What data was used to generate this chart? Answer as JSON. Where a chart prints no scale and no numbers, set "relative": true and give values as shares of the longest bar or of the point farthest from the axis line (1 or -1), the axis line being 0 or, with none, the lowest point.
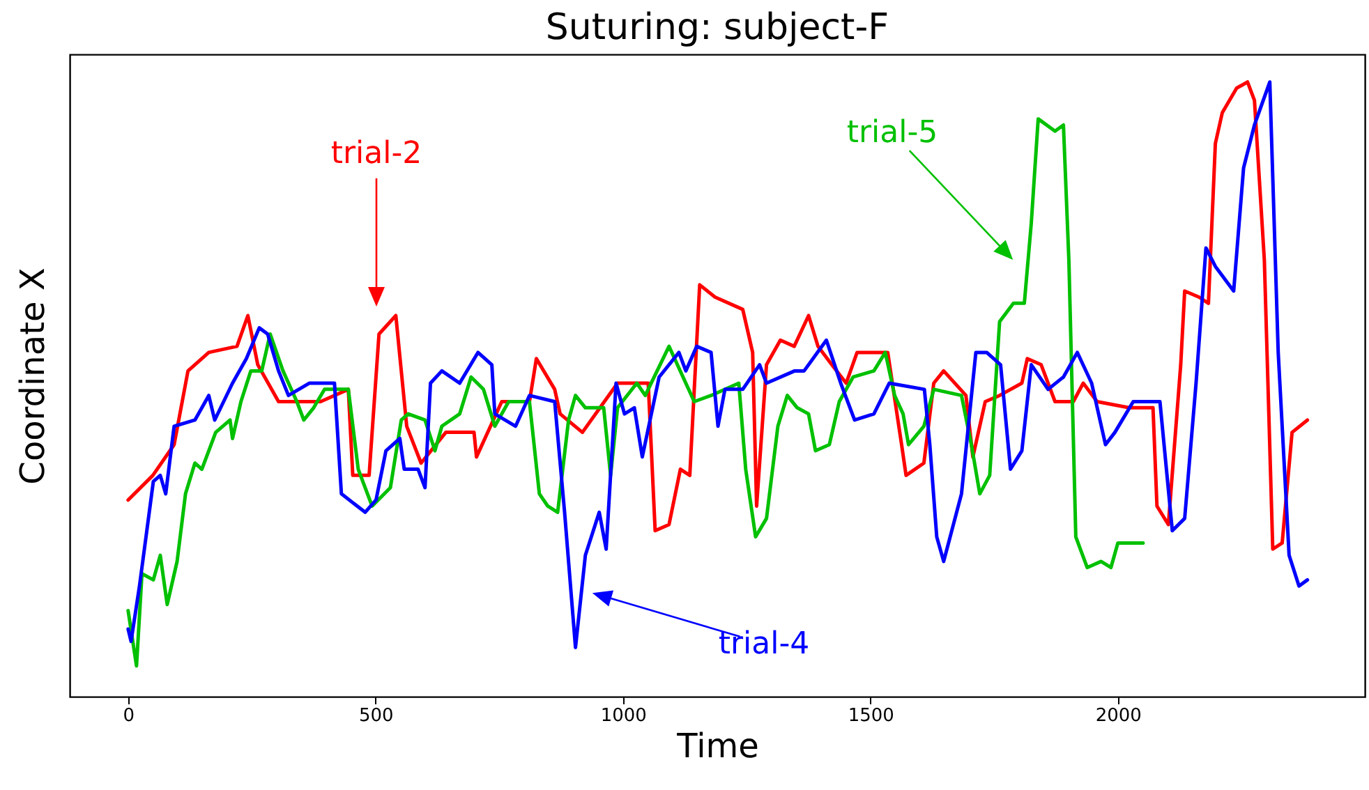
{
  "chart_data": {
    "type": "line",
    "title": "Suturing: subject-F",
    "xlabel": "Time",
    "ylabel": "Coordinate X",
    "relative": true,
    "xlim": [
      -118,
      2499
    ],
    "xticks": [
      0,
      500,
      1000,
      1500,
      2000
    ],
    "grid": false,
    "legend": false,
    "marker": "none",
    "line_style": "solid",
    "annotations": [
      "trial-2",
      "trial-5",
      "trial-4"
    ],
    "series": [
      {
        "color": "#ff0000",
        "x": [
          0,
          50,
          93,
          121,
          163,
          220,
          242,
          262,
          304,
          389,
          445,
          454,
          487,
          507,
          541,
          563,
          592,
          642,
          699,
          704,
          755,
          811,
          825,
          862,
          873,
          918,
          989,
          1051,
          1065,
          1093,
          1116,
          1135,
          1155,
          1186,
          1242,
          1262,
          1270,
          1290,
          1318,
          1346,
          1375,
          1394,
          1422,
          1451,
          1473,
          1535,
          1563,
          1572,
          1608,
          1628,
          1648,
          1693,
          1707,
          1732,
          1761,
          1806,
          1817,
          1845,
          1873,
          1910,
          1930,
          1958,
          2023,
          2071,
          2079,
          2102,
          2127,
          2135,
          2164,
          2183,
          2197,
          2211,
          2240,
          2262,
          2276,
          2296,
          2313,
          2332,
          2352,
          2383
        ],
        "values": [
          0.32,
          0.36,
          0.41,
          0.53,
          0.56,
          0.57,
          0.62,
          0.54,
          0.48,
          0.48,
          0.5,
          0.36,
          0.36,
          0.59,
          0.62,
          0.44,
          0.38,
          0.43,
          0.43,
          0.39,
          0.48,
          0.48,
          0.55,
          0.5,
          0.46,
          0.43,
          0.51,
          0.51,
          0.27,
          0.28,
          0.37,
          0.36,
          0.67,
          0.65,
          0.63,
          0.56,
          0.31,
          0.54,
          0.58,
          0.57,
          0.62,
          0.57,
          0.54,
          0.51,
          0.56,
          0.56,
          0.41,
          0.36,
          0.38,
          0.51,
          0.53,
          0.49,
          0.39,
          0.48,
          0.49,
          0.51,
          0.55,
          0.54,
          0.48,
          0.48,
          0.51,
          0.48,
          0.47,
          0.47,
          0.31,
          0.28,
          0.54,
          0.66,
          0.65,
          0.64,
          0.9,
          0.95,
          0.99,
          1.0,
          0.97,
          0.71,
          0.24,
          0.25,
          0.43,
          0.45
        ]
      },
      {
        "color": "#00c000",
        "x": [
          0,
          17,
          28,
          51,
          65,
          79,
          99,
          116,
          135,
          149,
          177,
          206,
          211,
          228,
          248,
          270,
          287,
          313,
          341,
          355,
          375,
          397,
          445,
          465,
          493,
          530,
          552,
          566,
          600,
          620,
          634,
          670,
          693,
          718,
          741,
          769,
          811,
          831,
          848,
          868,
          890,
          904,
          924,
          961,
          975,
          989,
          1028,
          1045,
          1093,
          1144,
          1178,
          1234,
          1248,
          1268,
          1290,
          1313,
          1332,
          1352,
          1375,
          1389,
          1417,
          1437,
          1465,
          1507,
          1530,
          1549,
          1566,
          1577,
          1608,
          1628,
          1684,
          1704,
          1721,
          1741,
          1761,
          1789,
          1811,
          1825,
          1839,
          1873,
          1890,
          1901,
          1915,
          1938,
          1966,
          1986,
          2000,
          2051
        ],
        "values": [
          0.14,
          0.05,
          0.2,
          0.19,
          0.23,
          0.15,
          0.22,
          0.33,
          0.38,
          0.37,
          0.43,
          0.45,
          0.42,
          0.48,
          0.53,
          0.53,
          0.59,
          0.53,
          0.48,
          0.45,
          0.47,
          0.5,
          0.5,
          0.37,
          0.31,
          0.34,
          0.45,
          0.46,
          0.45,
          0.4,
          0.44,
          0.46,
          0.52,
          0.5,
          0.44,
          0.48,
          0.48,
          0.33,
          0.31,
          0.3,
          0.45,
          0.49,
          0.47,
          0.47,
          0.36,
          0.47,
          0.51,
          0.49,
          0.57,
          0.48,
          0.49,
          0.51,
          0.37,
          0.26,
          0.29,
          0.44,
          0.49,
          0.47,
          0.46,
          0.4,
          0.41,
          0.48,
          0.52,
          0.53,
          0.56,
          0.49,
          0.46,
          0.41,
          0.44,
          0.5,
          0.49,
          0.41,
          0.33,
          0.36,
          0.61,
          0.64,
          0.64,
          0.77,
          0.94,
          0.92,
          0.93,
          0.71,
          0.26,
          0.21,
          0.22,
          0.21,
          0.25,
          0.25
        ]
      },
      {
        "color": "#0000ff",
        "x": [
          0,
          6,
          23,
          51,
          65,
          76,
          93,
          135,
          163,
          175,
          211,
          239,
          265,
          282,
          304,
          324,
          366,
          417,
          431,
          479,
          501,
          521,
          549,
          558,
          586,
          600,
          611,
          634,
          670,
          707,
          735,
          741,
          783,
          811,
          862,
          882,
          904,
          924,
          952,
          966,
          986,
          1003,
          1023,
          1039,
          1073,
          1113,
          1127,
          1149,
          1178,
          1192,
          1206,
          1242,
          1276,
          1290,
          1347,
          1366,
          1411,
          1440,
          1468,
          1507,
          1538,
          1609,
          1620,
          1634,
          1648,
          1684,
          1713,
          1735,
          1763,
          1783,
          1806,
          1825,
          1859,
          1890,
          1918,
          1947,
          1975,
          1994,
          2031,
          2085,
          2110,
          2135,
          2158,
          2178,
          2197,
          2234,
          2254,
          2276,
          2307,
          2324,
          2346,
          2366,
          2383
        ],
        "values": [
          0.11,
          0.09,
          0.18,
          0.35,
          0.36,
          0.33,
          0.44,
          0.45,
          0.49,
          0.45,
          0.51,
          0.55,
          0.6,
          0.59,
          0.53,
          0.49,
          0.51,
          0.51,
          0.33,
          0.3,
          0.32,
          0.4,
          0.42,
          0.37,
          0.37,
          0.34,
          0.51,
          0.53,
          0.51,
          0.56,
          0.54,
          0.46,
          0.44,
          0.49,
          0.48,
          0.3,
          0.08,
          0.23,
          0.3,
          0.24,
          0.51,
          0.46,
          0.47,
          0.39,
          0.52,
          0.56,
          0.53,
          0.57,
          0.56,
          0.44,
          0.5,
          0.5,
          0.54,
          0.51,
          0.53,
          0.53,
          0.58,
          0.51,
          0.45,
          0.46,
          0.51,
          0.5,
          0.41,
          0.26,
          0.22,
          0.33,
          0.56,
          0.56,
          0.54,
          0.37,
          0.4,
          0.54,
          0.5,
          0.52,
          0.56,
          0.51,
          0.41,
          0.43,
          0.48,
          0.48,
          0.27,
          0.29,
          0.51,
          0.73,
          0.7,
          0.66,
          0.86,
          0.93,
          1.0,
          0.56,
          0.23,
          0.18,
          0.19
        ]
      }
    ]
  }
}
